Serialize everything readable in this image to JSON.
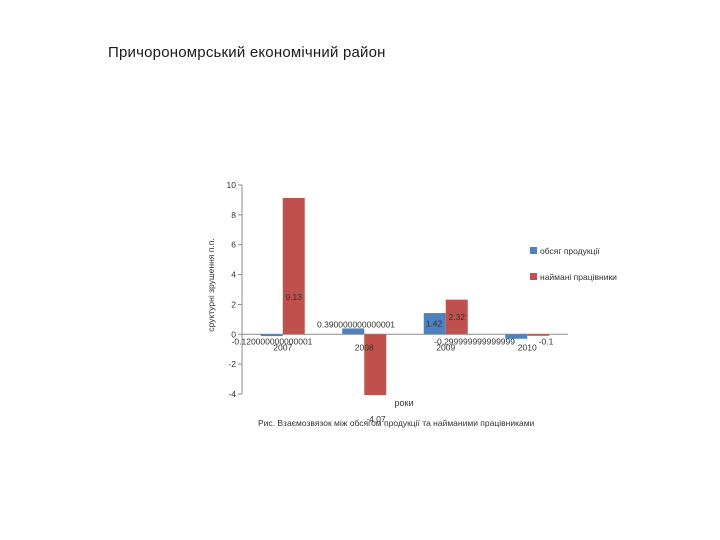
{
  "slide": {
    "title": "Причорономрський економічний район"
  },
  "chart_data": {
    "type": "bar",
    "title": "",
    "xlabel": "роки",
    "ylabel": "сруктурні зрушення п.п.",
    "caption": "Рис. Взаємозвязок між обсягом продукції та найманими працівниками",
    "ylim": [
      -4,
      10
    ],
    "yticks": [
      10,
      8,
      6,
      4,
      2,
      0,
      -2,
      -4
    ],
    "categories": [
      "2007",
      "2008",
      "2009",
      "2010"
    ],
    "series": [
      {
        "name": "обсяг продукції",
        "color": "#4f81bd",
        "values": [
          -0.12,
          0.39,
          1.42,
          -0.3
        ],
        "labels": [
          "-0.120000000000001",
          "0.390000000000001",
          "1.42",
          "-0.299999999999999"
        ]
      },
      {
        "name": "наймані працівники",
        "color": "#c0504d",
        "values": [
          9.13,
          -4.07,
          2.32,
          -0.1
        ],
        "labels": [
          "9.13",
          "-4.07",
          "2.32",
          "-0.1"
        ]
      }
    ],
    "legend": "right",
    "grid": false
  }
}
